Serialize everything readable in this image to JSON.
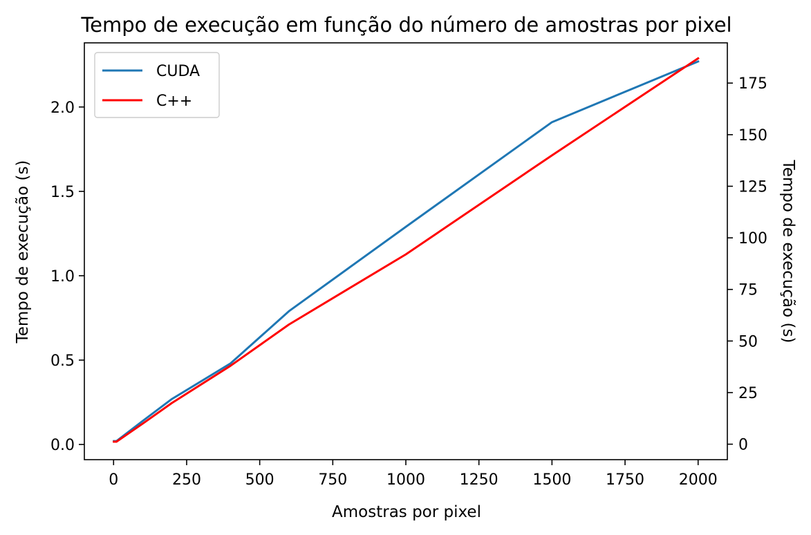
{
  "chart_data": {
    "type": "line",
    "title": "Tempo de execução em função do número de amostras por pixel",
    "xlabel": "Amostras por pixel",
    "ylabel_left": "Tempo de execução (s)",
    "ylabel_right": "Tempo de execução (s)",
    "xlim": [
      -100,
      2100
    ],
    "ylim_left": [
      -0.09,
      2.38
    ],
    "ylim_right": [
      -7.5,
      194.5
    ],
    "x_ticks": [
      0,
      250,
      500,
      750,
      1000,
      1250,
      1500,
      1750,
      2000
    ],
    "y_ticks_left": [
      0.0,
      0.5,
      1.0,
      1.5,
      2.0
    ],
    "y_tick_labels_left": [
      "0.0",
      "0.5",
      "1.0",
      "1.5",
      "2.0"
    ],
    "y_ticks_right": [
      0,
      25,
      50,
      75,
      100,
      125,
      150,
      175
    ],
    "grid": false,
    "legend_position": "upper left",
    "series": [
      {
        "name": "CUDA",
        "axis": "left",
        "color": "#1f77b4",
        "x": [
          1,
          10,
          100,
          200,
          400,
          600,
          800,
          1000,
          1500,
          2000
        ],
        "y": [
          0.02,
          0.02,
          0.14,
          0.27,
          0.48,
          0.79,
          1.04,
          1.29,
          1.91,
          2.27
        ]
      },
      {
        "name": "C++",
        "axis": "right",
        "color": "#ff0000",
        "x": [
          1,
          10,
          100,
          200,
          400,
          600,
          800,
          1000,
          1500,
          2000
        ],
        "y": [
          1.2,
          1.2,
          10,
          20,
          38,
          58,
          75,
          92,
          140,
          187
        ]
      }
    ]
  }
}
